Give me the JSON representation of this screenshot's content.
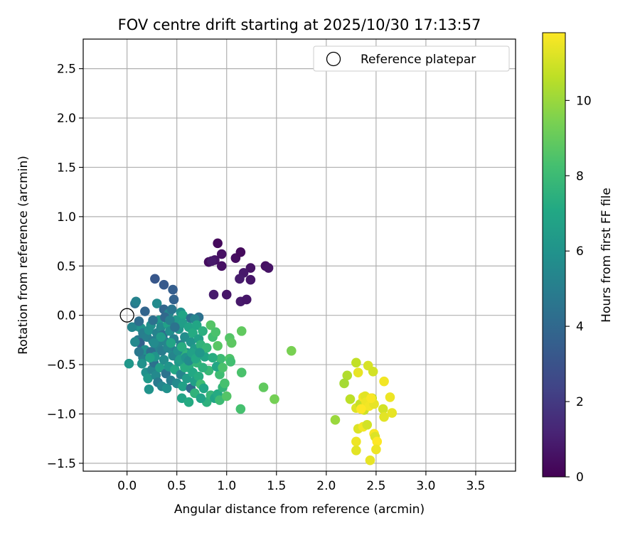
{
  "chart_data": {
    "type": "scatter",
    "title": "FOV centre drift starting at 2025/10/30 17:13:57",
    "xlabel": "Angular distance from reference (arcmin)",
    "ylabel": "Rotation from reference (arcmin)",
    "xlim": [
      -0.44,
      3.9
    ],
    "ylim": [
      -1.58,
      2.8
    ],
    "xticks": [
      0.0,
      0.5,
      1.0,
      1.5,
      2.0,
      2.5,
      3.0,
      3.5
    ],
    "xtick_labels": [
      "0.0",
      "0.5",
      "1.0",
      "1.5",
      "2.0",
      "2.5",
      "3.0",
      "3.5"
    ],
    "yticks": [
      -1.5,
      -1.0,
      -0.5,
      0.0,
      0.5,
      1.0,
      1.5,
      2.0,
      2.5
    ],
    "ytick_labels": [
      "−1.5",
      "−1.0",
      "−0.5",
      "0.0",
      "0.5",
      "1.0",
      "1.5",
      "2.0",
      "2.5"
    ],
    "grid": true,
    "legend": {
      "position": "top-right",
      "entries": [
        "Reference platepar"
      ]
    },
    "reference_point": {
      "x": 0.0,
      "y": 0.0,
      "marker": "open-circle",
      "label": "Reference platepar"
    },
    "colorbar": {
      "label": "Hours from first FF file",
      "colormap": "viridis",
      "range": [
        0,
        11.8
      ],
      "ticks": [
        0,
        2,
        4,
        6,
        8,
        10
      ],
      "tick_labels": [
        "0",
        "2",
        "4",
        "6",
        "8",
        "10"
      ]
    },
    "points": [
      [
        0.91,
        0.73,
        0.3
      ],
      [
        0.82,
        0.54,
        0.4
      ],
      [
        0.88,
        0.56,
        0.6
      ],
      [
        0.95,
        0.62,
        0.5
      ],
      [
        1.09,
        0.58,
        0.4
      ],
      [
        1.14,
        0.64,
        0.3
      ],
      [
        0.85,
        0.55,
        0.8
      ],
      [
        0.95,
        0.5,
        0.5
      ],
      [
        1.24,
        0.48,
        0.6
      ],
      [
        1.17,
        0.43,
        0.8
      ],
      [
        1.13,
        0.37,
        0.9
      ],
      [
        1.24,
        0.36,
        0.7
      ],
      [
        1.39,
        0.5,
        0.5
      ],
      [
        1.42,
        0.48,
        0.6
      ],
      [
        0.87,
        0.21,
        0.9
      ],
      [
        1.0,
        0.21,
        0.7
      ],
      [
        1.14,
        0.14,
        0.8
      ],
      [
        1.2,
        0.16,
        0.7
      ],
      [
        0.28,
        0.37,
        3.2
      ],
      [
        0.37,
        0.31,
        3.3
      ],
      [
        0.46,
        0.26,
        3.5
      ],
      [
        0.47,
        0.16,
        3.7
      ],
      [
        0.08,
        0.12,
        4.6
      ],
      [
        0.09,
        0.14,
        5.2
      ],
      [
        0.18,
        0.04,
        3.8
      ],
      [
        0.3,
        0.12,
        5.6
      ],
      [
        0.37,
        0.06,
        3.9
      ],
      [
        0.42,
        0.02,
        5.4
      ],
      [
        0.45,
        0.06,
        4.6
      ],
      [
        0.54,
        0.03,
        5.9
      ],
      [
        0.56,
        0.0,
        6.9
      ],
      [
        0.64,
        -0.03,
        4.3
      ],
      [
        0.72,
        -0.02,
        4.4
      ],
      [
        0.68,
        -0.04,
        5.3
      ],
      [
        0.1,
        -0.11,
        5.6
      ],
      [
        0.14,
        -0.13,
        6.0
      ],
      [
        0.11,
        -0.25,
        4.8
      ],
      [
        0.13,
        -0.28,
        3.6
      ],
      [
        0.16,
        -0.18,
        5.0
      ],
      [
        0.2,
        -0.22,
        5.1
      ],
      [
        0.22,
        -0.15,
        5.9
      ],
      [
        0.24,
        -0.1,
        5.8
      ],
      [
        0.26,
        -0.26,
        4.9
      ],
      [
        0.29,
        -0.33,
        5.4
      ],
      [
        0.3,
        -0.18,
        5.2
      ],
      [
        0.32,
        -0.05,
        6.2
      ],
      [
        0.34,
        -0.12,
        5.5
      ],
      [
        0.36,
        -0.2,
        4.2
      ],
      [
        0.39,
        -0.27,
        5.3
      ],
      [
        0.41,
        -0.09,
        6.7
      ],
      [
        0.43,
        -0.16,
        5.8
      ],
      [
        0.45,
        -0.35,
        4.7
      ],
      [
        0.47,
        -0.24,
        5.1
      ],
      [
        0.49,
        -0.05,
        6.3
      ],
      [
        0.52,
        -0.14,
        6.1
      ],
      [
        0.54,
        -0.3,
        5.0
      ],
      [
        0.56,
        -0.08,
        6.5
      ],
      [
        0.58,
        -0.22,
        5.7
      ],
      [
        0.6,
        -0.38,
        5.2
      ],
      [
        0.62,
        -0.12,
        6.8
      ],
      [
        0.64,
        -0.27,
        6.0
      ],
      [
        0.66,
        -0.18,
        7.2
      ],
      [
        0.68,
        -0.34,
        6.4
      ],
      [
        0.7,
        -0.1,
        7.0
      ],
      [
        0.72,
        -0.24,
        6.6
      ],
      [
        0.74,
        -0.3,
        7.6
      ],
      [
        0.76,
        -0.16,
        7.4
      ],
      [
        0.78,
        -0.42,
        6.9
      ],
      [
        0.8,
        -0.33,
        7.8
      ],
      [
        0.84,
        -0.1,
        8.6
      ],
      [
        0.86,
        -0.22,
        8.2
      ],
      [
        0.89,
        -0.17,
        8.4
      ],
      [
        0.91,
        -0.31,
        8.7
      ],
      [
        0.94,
        -0.44,
        8.0
      ],
      [
        0.86,
        -0.43,
        7.3
      ],
      [
        0.82,
        -0.56,
        7.9
      ],
      [
        0.8,
        -0.88,
        7.5
      ],
      [
        0.84,
        -0.81,
        7.8
      ],
      [
        0.88,
        -0.84,
        6.9
      ],
      [
        0.91,
        -0.8,
        7.2
      ],
      [
        0.93,
        -0.86,
        8.0
      ],
      [
        0.96,
        -0.73,
        7.7
      ],
      [
        0.98,
        -0.69,
        8.3
      ],
      [
        0.93,
        -0.6,
        8.1
      ],
      [
        0.9,
        -0.52,
        7.0
      ],
      [
        0.96,
        -0.53,
        8.4
      ],
      [
        1.03,
        -0.23,
        8.6
      ],
      [
        1.05,
        -0.28,
        8.8
      ],
      [
        1.03,
        -0.44,
        8.5
      ],
      [
        1.04,
        -0.47,
        8.2
      ],
      [
        1.15,
        -0.16,
        8.9
      ],
      [
        1.0,
        -0.82,
        8.6
      ],
      [
        1.15,
        -0.58,
        8.4
      ],
      [
        1.14,
        -0.95,
        8.3
      ],
      [
        1.37,
        -0.73,
        8.9
      ],
      [
        1.48,
        -0.85,
        9.3
      ],
      [
        1.65,
        -0.36,
        9.4
      ],
      [
        0.02,
        -0.49,
        6.2
      ],
      [
        0.16,
        -0.43,
        5.1
      ],
      [
        0.22,
        -0.4,
        4.6
      ],
      [
        0.19,
        -0.58,
        5.9
      ],
      [
        0.21,
        -0.64,
        6.3
      ],
      [
        0.22,
        -0.75,
        6.0
      ],
      [
        0.25,
        -0.55,
        5.3
      ],
      [
        0.27,
        -0.48,
        4.4
      ],
      [
        0.29,
        -0.61,
        5.5
      ],
      [
        0.31,
        -0.68,
        4.8
      ],
      [
        0.33,
        -0.53,
        6.6
      ],
      [
        0.35,
        -0.72,
        5.4
      ],
      [
        0.37,
        -0.45,
        5.7
      ],
      [
        0.39,
        -0.59,
        4.5
      ],
      [
        0.4,
        -0.74,
        5.9
      ],
      [
        0.42,
        -0.52,
        6.1
      ],
      [
        0.44,
        -0.66,
        5.0
      ],
      [
        0.46,
        -0.41,
        6.4
      ],
      [
        0.48,
        -0.55,
        7.1
      ],
      [
        0.5,
        -0.69,
        5.6
      ],
      [
        0.52,
        -0.47,
        6.2
      ],
      [
        0.54,
        -0.6,
        5.3
      ],
      [
        0.56,
        -0.72,
        6.7
      ],
      [
        0.58,
        -0.5,
        7.0
      ],
      [
        0.6,
        -0.64,
        6.5
      ],
      [
        0.62,
        -0.53,
        7.4
      ],
      [
        0.64,
        -0.74,
        4.1
      ],
      [
        0.66,
        -0.58,
        7.1
      ],
      [
        0.68,
        -0.67,
        6.6
      ],
      [
        0.7,
        -0.48,
        7.7
      ],
      [
        0.72,
        -0.62,
        7.3
      ],
      [
        0.74,
        -0.7,
        8.1
      ],
      [
        0.76,
        -0.53,
        7.5
      ],
      [
        0.55,
        -0.84,
        6.8
      ],
      [
        0.62,
        -0.88,
        7.2
      ],
      [
        0.68,
        -0.79,
        7.6
      ],
      [
        0.74,
        -0.84,
        6.8
      ],
      [
        0.77,
        -0.74,
        7.0
      ],
      [
        0.58,
        -0.53,
        7.3
      ],
      [
        0.66,
        -0.44,
        7.9
      ],
      [
        0.57,
        -0.38,
        7.6
      ],
      [
        0.18,
        -0.35,
        5.8
      ],
      [
        0.24,
        -0.37,
        4.3
      ],
      [
        0.28,
        -0.42,
        6.1
      ],
      [
        0.31,
        -0.3,
        5.2
      ],
      [
        0.35,
        -0.36,
        4.9
      ],
      [
        0.41,
        -0.33,
        5.4
      ],
      [
        0.44,
        -0.28,
        6.9
      ],
      [
        0.47,
        -0.41,
        5.3
      ],
      [
        0.51,
        -0.36,
        5.8
      ],
      [
        0.53,
        -0.45,
        6.5
      ],
      [
        0.55,
        -0.32,
        7.3
      ],
      [
        0.59,
        -0.43,
        6.0
      ],
      [
        0.62,
        -0.46,
        5.6
      ],
      [
        0.65,
        -0.38,
        6.7
      ],
      [
        0.69,
        -0.44,
        7.1
      ],
      [
        0.73,
        -0.38,
        6.2
      ],
      [
        0.38,
        -0.02,
        4.0
      ],
      [
        0.43,
        -0.05,
        5.1
      ],
      [
        0.48,
        -0.12,
        4.5
      ],
      [
        0.34,
        -0.22,
        6.4
      ],
      [
        0.27,
        -0.28,
        5.6
      ],
      [
        0.23,
        -0.43,
        6.8
      ],
      [
        0.12,
        -0.37,
        4.7
      ],
      [
        0.15,
        -0.49,
        5.9
      ],
      [
        0.08,
        -0.27,
        5.5
      ],
      [
        0.05,
        -0.12,
        5.4
      ],
      [
        0.12,
        -0.06,
        4.2
      ],
      [
        0.26,
        -0.05,
        4.4
      ],
      [
        2.09,
        -1.06,
        10.0
      ],
      [
        2.21,
        -0.61,
        10.4
      ],
      [
        2.18,
        -0.69,
        10.2
      ],
      [
        2.24,
        -0.85,
        10.6
      ],
      [
        2.3,
        -0.48,
        10.7
      ],
      [
        2.32,
        -0.58,
        11.4
      ],
      [
        2.3,
        -0.94,
        11.2
      ],
      [
        2.34,
        -0.9,
        10.8
      ],
      [
        2.37,
        -0.83,
        11.6
      ],
      [
        2.39,
        -0.82,
        11.3
      ],
      [
        2.42,
        -0.51,
        11.1
      ],
      [
        2.47,
        -0.57,
        11.0
      ],
      [
        2.38,
        -0.96,
        10.9
      ],
      [
        2.4,
        -0.88,
        11.5
      ],
      [
        2.43,
        -0.92,
        11.6
      ],
      [
        2.46,
        -0.84,
        10.7
      ],
      [
        2.48,
        -0.9,
        11.4
      ],
      [
        2.32,
        -1.15,
        11.2
      ],
      [
        2.37,
        -1.13,
        11.6
      ],
      [
        2.41,
        -1.11,
        11.0
      ],
      [
        2.3,
        -1.28,
        11.5
      ],
      [
        2.3,
        -1.37,
        11.3
      ],
      [
        2.48,
        -1.2,
        11.7
      ],
      [
        2.49,
        -1.23,
        11.2
      ],
      [
        2.51,
        -1.28,
        11.8
      ],
      [
        2.5,
        -1.36,
        11.5
      ],
      [
        2.44,
        -1.47,
        11.4
      ],
      [
        2.58,
        -0.67,
        11.6
      ],
      [
        2.57,
        -0.95,
        11.0
      ],
      [
        2.58,
        -1.03,
        11.3
      ],
      [
        2.64,
        -0.83,
        11.5
      ],
      [
        2.66,
        -0.99,
        11.4
      ],
      [
        2.35,
        -0.95,
        11.8
      ],
      [
        2.45,
        -0.84,
        11.7
      ]
    ]
  }
}
